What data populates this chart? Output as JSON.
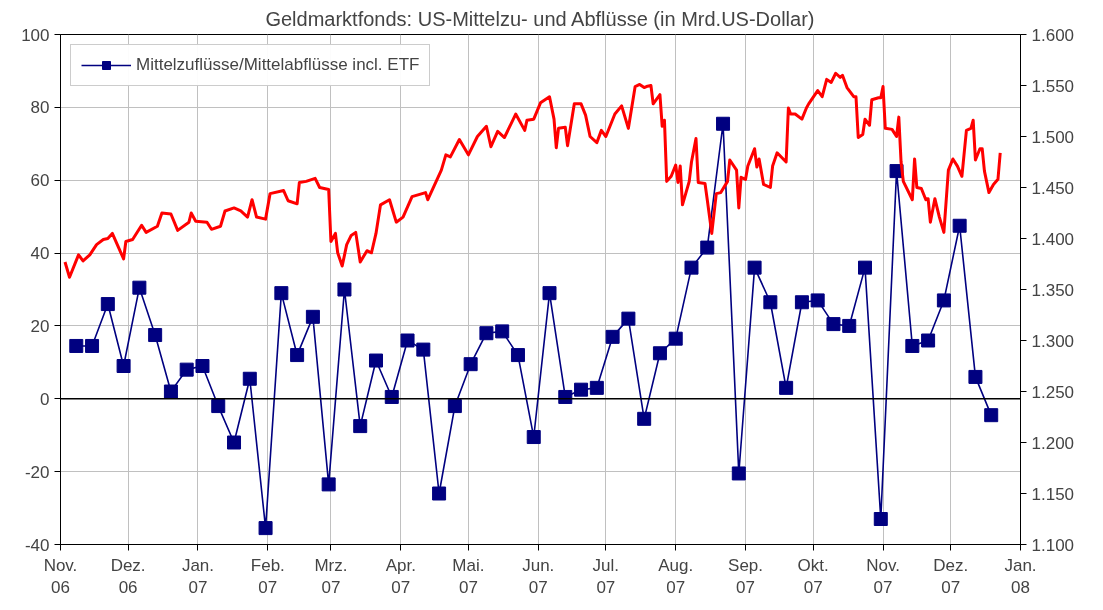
{
  "chart_data": {
    "type": "line",
    "title": "Geldmarktfonds: US-Mittelzu- und Abflüsse (in Mrd.US-Dollar)",
    "series": [
      {
        "name": "Mittelzuflüsse/Mittelabflüsse incl. ETF",
        "color": "#000080",
        "marker": "square",
        "x": [
          "2006-11-08",
          "2006-11-15",
          "2006-11-22",
          "2006-11-29",
          "2006-12-06",
          "2006-12-13",
          "2006-12-20",
          "2006-12-27",
          "2007-01-03",
          "2007-01-10",
          "2007-01-17",
          "2007-01-24",
          "2007-01-31",
          "2007-02-07",
          "2007-02-14",
          "2007-02-21",
          "2007-02-28",
          "2007-03-07",
          "2007-03-14",
          "2007-03-21",
          "2007-03-28",
          "2007-04-04",
          "2007-04-11",
          "2007-04-18",
          "2007-04-25",
          "2007-05-02",
          "2007-05-09",
          "2007-05-16",
          "2007-05-23",
          "2007-05-30",
          "2007-06-06",
          "2007-06-13",
          "2007-06-20",
          "2007-06-27",
          "2007-07-04",
          "2007-07-11",
          "2007-07-18",
          "2007-07-25",
          "2007-08-01",
          "2007-08-08",
          "2007-08-15",
          "2007-08-22",
          "2007-08-29",
          "2007-09-05",
          "2007-09-12",
          "2007-09-19",
          "2007-09-26",
          "2007-10-03",
          "2007-10-10",
          "2007-10-17",
          "2007-10-24",
          "2007-10-31",
          "2007-11-07",
          "2007-11-14",
          "2007-11-21",
          "2007-11-28",
          "2007-12-05",
          "2007-12-12",
          "2007-12-19"
        ],
        "values": [
          14.5,
          14.5,
          26,
          9,
          30.5,
          17.5,
          2,
          8,
          9,
          -2,
          -12,
          5.5,
          -35.5,
          29,
          12,
          22.5,
          -23.5,
          30,
          -7.5,
          10.5,
          0.5,
          16,
          13.5,
          -26,
          -2,
          9.5,
          18,
          18.5,
          12,
          -10.5,
          29,
          0.5,
          2.5,
          3,
          17,
          22,
          -5.5,
          12.5,
          16.5,
          36,
          41.5,
          75.5,
          -20.5,
          36,
          26.5,
          3,
          26.5,
          27,
          20.5,
          20,
          36,
          -33,
          62.5,
          14.5,
          16,
          27,
          47.5,
          6,
          -4.5
        ]
      },
      {
        "color": "#ff0000",
        "axis": "y2",
        "marker": "none",
        "x": [
          "2006-11-03",
          "2006-11-05",
          "2006-11-09",
          "2006-11-11",
          "2006-11-14",
          "2006-11-17",
          "2006-11-20",
          "2006-11-22",
          "2006-11-24",
          "2006-11-26",
          "2006-11-29",
          "2006-11-30",
          "2006-12-03",
          "2006-12-07",
          "2006-12-09",
          "2006-12-14",
          "2006-12-16",
          "2006-12-20",
          "2006-12-23",
          "2006-12-28",
          "2006-12-29",
          "2006-12-31",
          "2007-01-05",
          "2007-01-07",
          "2007-01-11",
          "2007-01-13",
          "2007-01-17",
          "2007-01-20",
          "2007-01-23",
          "2007-01-25",
          "2007-01-27",
          "2007-01-31",
          "2007-02-02",
          "2007-02-08",
          "2007-02-10",
          "2007-02-14",
          "2007-02-15",
          "2007-02-18",
          "2007-02-22",
          "2007-02-24",
          "2007-02-28",
          "2007-03-01",
          "2007-03-03",
          "2007-03-04",
          "2007-03-06",
          "2007-03-08",
          "2007-03-10",
          "2007-03-12",
          "2007-03-14",
          "2007-03-17",
          "2007-03-19",
          "2007-03-21",
          "2007-03-23",
          "2007-03-27",
          "2007-03-30",
          "2007-04-02",
          "2007-04-06",
          "2007-04-12",
          "2007-04-13",
          "2007-04-19",
          "2007-04-21",
          "2007-04-23",
          "2007-04-27",
          "2007-05-01",
          "2007-05-05",
          "2007-05-09",
          "2007-05-11",
          "2007-05-14",
          "2007-05-17",
          "2007-05-22",
          "2007-05-26",
          "2007-05-27",
          "2007-05-30",
          "2007-06-02",
          "2007-06-06",
          "2007-06-08",
          "2007-06-09",
          "2007-06-10",
          "2007-06-13",
          "2007-06-14",
          "2007-06-17",
          "2007-06-20",
          "2007-06-22",
          "2007-06-24",
          "2007-06-27",
          "2007-06-29",
          "2007-07-01",
          "2007-07-05",
          "2007-07-08",
          "2007-07-11",
          "2007-07-14",
          "2007-07-16",
          "2007-07-18",
          "2007-07-19",
          "2007-07-21",
          "2007-07-22",
          "2007-07-25",
          "2007-07-26",
          "2007-07-27",
          "2007-07-28",
          "2007-07-30",
          "2007-08-01",
          "2007-08-02",
          "2007-08-03",
          "2007-08-04",
          "2007-08-07",
          "2007-08-08",
          "2007-08-10",
          "2007-08-11",
          "2007-08-14",
          "2007-08-15",
          "2007-08-17",
          "2007-08-19",
          "2007-08-21",
          "2007-08-24",
          "2007-08-25",
          "2007-08-28",
          "2007-08-29",
          "2007-08-30",
          "2007-09-01",
          "2007-09-02",
          "2007-09-05",
          "2007-09-06",
          "2007-09-07",
          "2007-09-09",
          "2007-09-12",
          "2007-09-13",
          "2007-09-15",
          "2007-09-19",
          "2007-09-20",
          "2007-09-21",
          "2007-09-23",
          "2007-09-26",
          "2007-09-28",
          "2007-09-29",
          "2007-10-03",
          "2007-10-05",
          "2007-10-07",
          "2007-10-09",
          "2007-10-11",
          "2007-10-13",
          "2007-10-14",
          "2007-10-16",
          "2007-10-19",
          "2007-10-20",
          "2007-10-21",
          "2007-10-23",
          "2007-10-24",
          "2007-10-26",
          "2007-10-27",
          "2007-10-30",
          "2007-10-31",
          "2007-11-01",
          "2007-11-02",
          "2007-11-05",
          "2007-11-07",
          "2007-11-08",
          "2007-11-09",
          "2007-11-10",
          "2007-11-14",
          "2007-11-15",
          "2007-11-16",
          "2007-11-18",
          "2007-11-20",
          "2007-11-21",
          "2007-11-22",
          "2007-11-24",
          "2007-11-26",
          "2007-11-28",
          "2007-11-30",
          "2007-12-02",
          "2007-12-04",
          "2007-12-06",
          "2007-12-08",
          "2007-12-10",
          "2007-12-11",
          "2007-12-12",
          "2007-12-14",
          "2007-12-15",
          "2007-12-16",
          "2007-12-18",
          "2007-12-20",
          "2007-12-22",
          "2007-12-23"
        ],
        "values": [
          1377,
          1362,
          1384,
          1378,
          1384,
          1394,
          1399,
          1400,
          1405,
          1395,
          1380,
          1397,
          1399,
          1413,
          1406,
          1412,
          1425,
          1424,
          1408,
          1416,
          1425,
          1417,
          1416,
          1409,
          1412,
          1427,
          1430,
          1427,
          1421,
          1438,
          1421,
          1419,
          1444,
          1447,
          1437,
          1434,
          1455,
          1456,
          1459,
          1450,
          1448,
          1397,
          1405,
          1386,
          1373,
          1394,
          1403,
          1406,
          1377,
          1388,
          1386,
          1405,
          1433,
          1438,
          1416,
          1421,
          1441,
          1445,
          1438,
          1467,
          1482,
          1480,
          1497,
          1482,
          1500,
          1510,
          1490,
          1505,
          1499,
          1522,
          1506,
          1516,
          1517,
          1533,
          1539,
          1517,
          1489,
          1508,
          1509,
          1491,
          1532,
          1532,
          1521,
          1500,
          1494,
          1506,
          1500,
          1522,
          1530,
          1508,
          1549,
          1551,
          1548,
          1549,
          1550,
          1532,
          1541,
          1510,
          1516,
          1456,
          1461,
          1472,
          1455,
          1471,
          1433,
          1456,
          1475,
          1498,
          1455,
          1454,
          1438,
          1405,
          1444,
          1445,
          1456,
          1477,
          1467,
          1430,
          1460,
          1458,
          1471,
          1488,
          1470,
          1478,
          1453,
          1450,
          1471,
          1484,
          1475,
          1528,
          1522,
          1522,
          1517,
          1528,
          1532,
          1545,
          1539,
          1556,
          1553,
          1562,
          1558,
          1560,
          1548,
          1539,
          1539,
          1499,
          1502,
          1517,
          1511,
          1536,
          1538,
          1538,
          1549,
          1508,
          1507,
          1500,
          1519,
          1475,
          1456,
          1438,
          1478,
          1450,
          1449,
          1438,
          1439,
          1416,
          1439,
          1421,
          1406,
          1467,
          1478,
          1471,
          1461,
          1506,
          1508,
          1516,
          1477,
          1488,
          1488,
          1466,
          1445,
          1453,
          1458,
          1484
        ]
      }
    ],
    "xlim": [
      "2006-11-01",
      "2008-01-01"
    ],
    "xticks": [
      {
        "value": "2006-11-01",
        "label": "Nov.\n06"
      },
      {
        "value": "2006-12-01",
        "label": "Dez.\n06"
      },
      {
        "value": "2007-01-01",
        "label": "Jan.\n07"
      },
      {
        "value": "2007-02-01",
        "label": "Feb.\n07"
      },
      {
        "value": "2007-03-01",
        "label": "Mrz.\n07"
      },
      {
        "value": "2007-04-01",
        "label": "Apr.\n07"
      },
      {
        "value": "2007-05-01",
        "label": "Mai.\n07"
      },
      {
        "value": "2007-06-01",
        "label": "Jun.\n07"
      },
      {
        "value": "2007-07-01",
        "label": "Jul.\n07"
      },
      {
        "value": "2007-08-01",
        "label": "Aug.\n07"
      },
      {
        "value": "2007-09-01",
        "label": "Sep.\n07"
      },
      {
        "value": "2007-10-01",
        "label": "Okt.\n07"
      },
      {
        "value": "2007-11-01",
        "label": "Nov.\n07"
      },
      {
        "value": "2007-12-01",
        "label": "Dez.\n07"
      },
      {
        "value": "2008-01-01",
        "label": "Jan.\n08"
      }
    ],
    "ylim": [
      -40,
      100
    ],
    "yticks": [
      -40,
      -20,
      0,
      20,
      40,
      60,
      80,
      100
    ],
    "y2lim": [
      1100,
      1600
    ],
    "y2ticks": [
      {
        "value": 1100,
        "label": "1.100"
      },
      {
        "value": 1150,
        "label": "1.150"
      },
      {
        "value": 1200,
        "label": "1.200"
      },
      {
        "value": 1250,
        "label": "1.250"
      },
      {
        "value": 1300,
        "label": "1.300"
      },
      {
        "value": 1350,
        "label": "1.350"
      },
      {
        "value": 1400,
        "label": "1.400"
      },
      {
        "value": 1450,
        "label": "1.450"
      },
      {
        "value": 1500,
        "label": "1.500"
      },
      {
        "value": 1550,
        "label": "1.550"
      },
      {
        "value": 1600,
        "label": "1.600"
      }
    ],
    "ref_lines": [
      {
        "axis": "y",
        "value": 0,
        "color": "#000000"
      }
    ],
    "grid": true,
    "legend": "top left"
  }
}
